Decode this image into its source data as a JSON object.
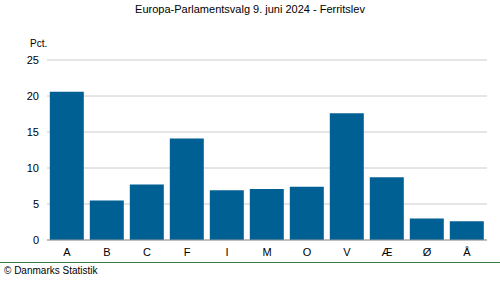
{
  "chart_data": {
    "type": "bar",
    "title": "Europa-Parlamentsvalg 9. juni 2024 - Ferritslev",
    "y_label": "Pct.",
    "footnote": "© Danmarks Statistik",
    "categories": [
      "A",
      "B",
      "C",
      "F",
      "I",
      "M",
      "O",
      "V",
      "Æ",
      "Ø",
      "Å"
    ],
    "values": [
      20.6,
      5.5,
      7.7,
      14.1,
      6.9,
      7.1,
      7.4,
      17.6,
      8.7,
      3.0,
      2.6
    ],
    "color": "#005f93",
    "ylim": [
      0,
      25
    ],
    "yticks": [
      0,
      5,
      10,
      15,
      20,
      25
    ],
    "grid": true
  }
}
